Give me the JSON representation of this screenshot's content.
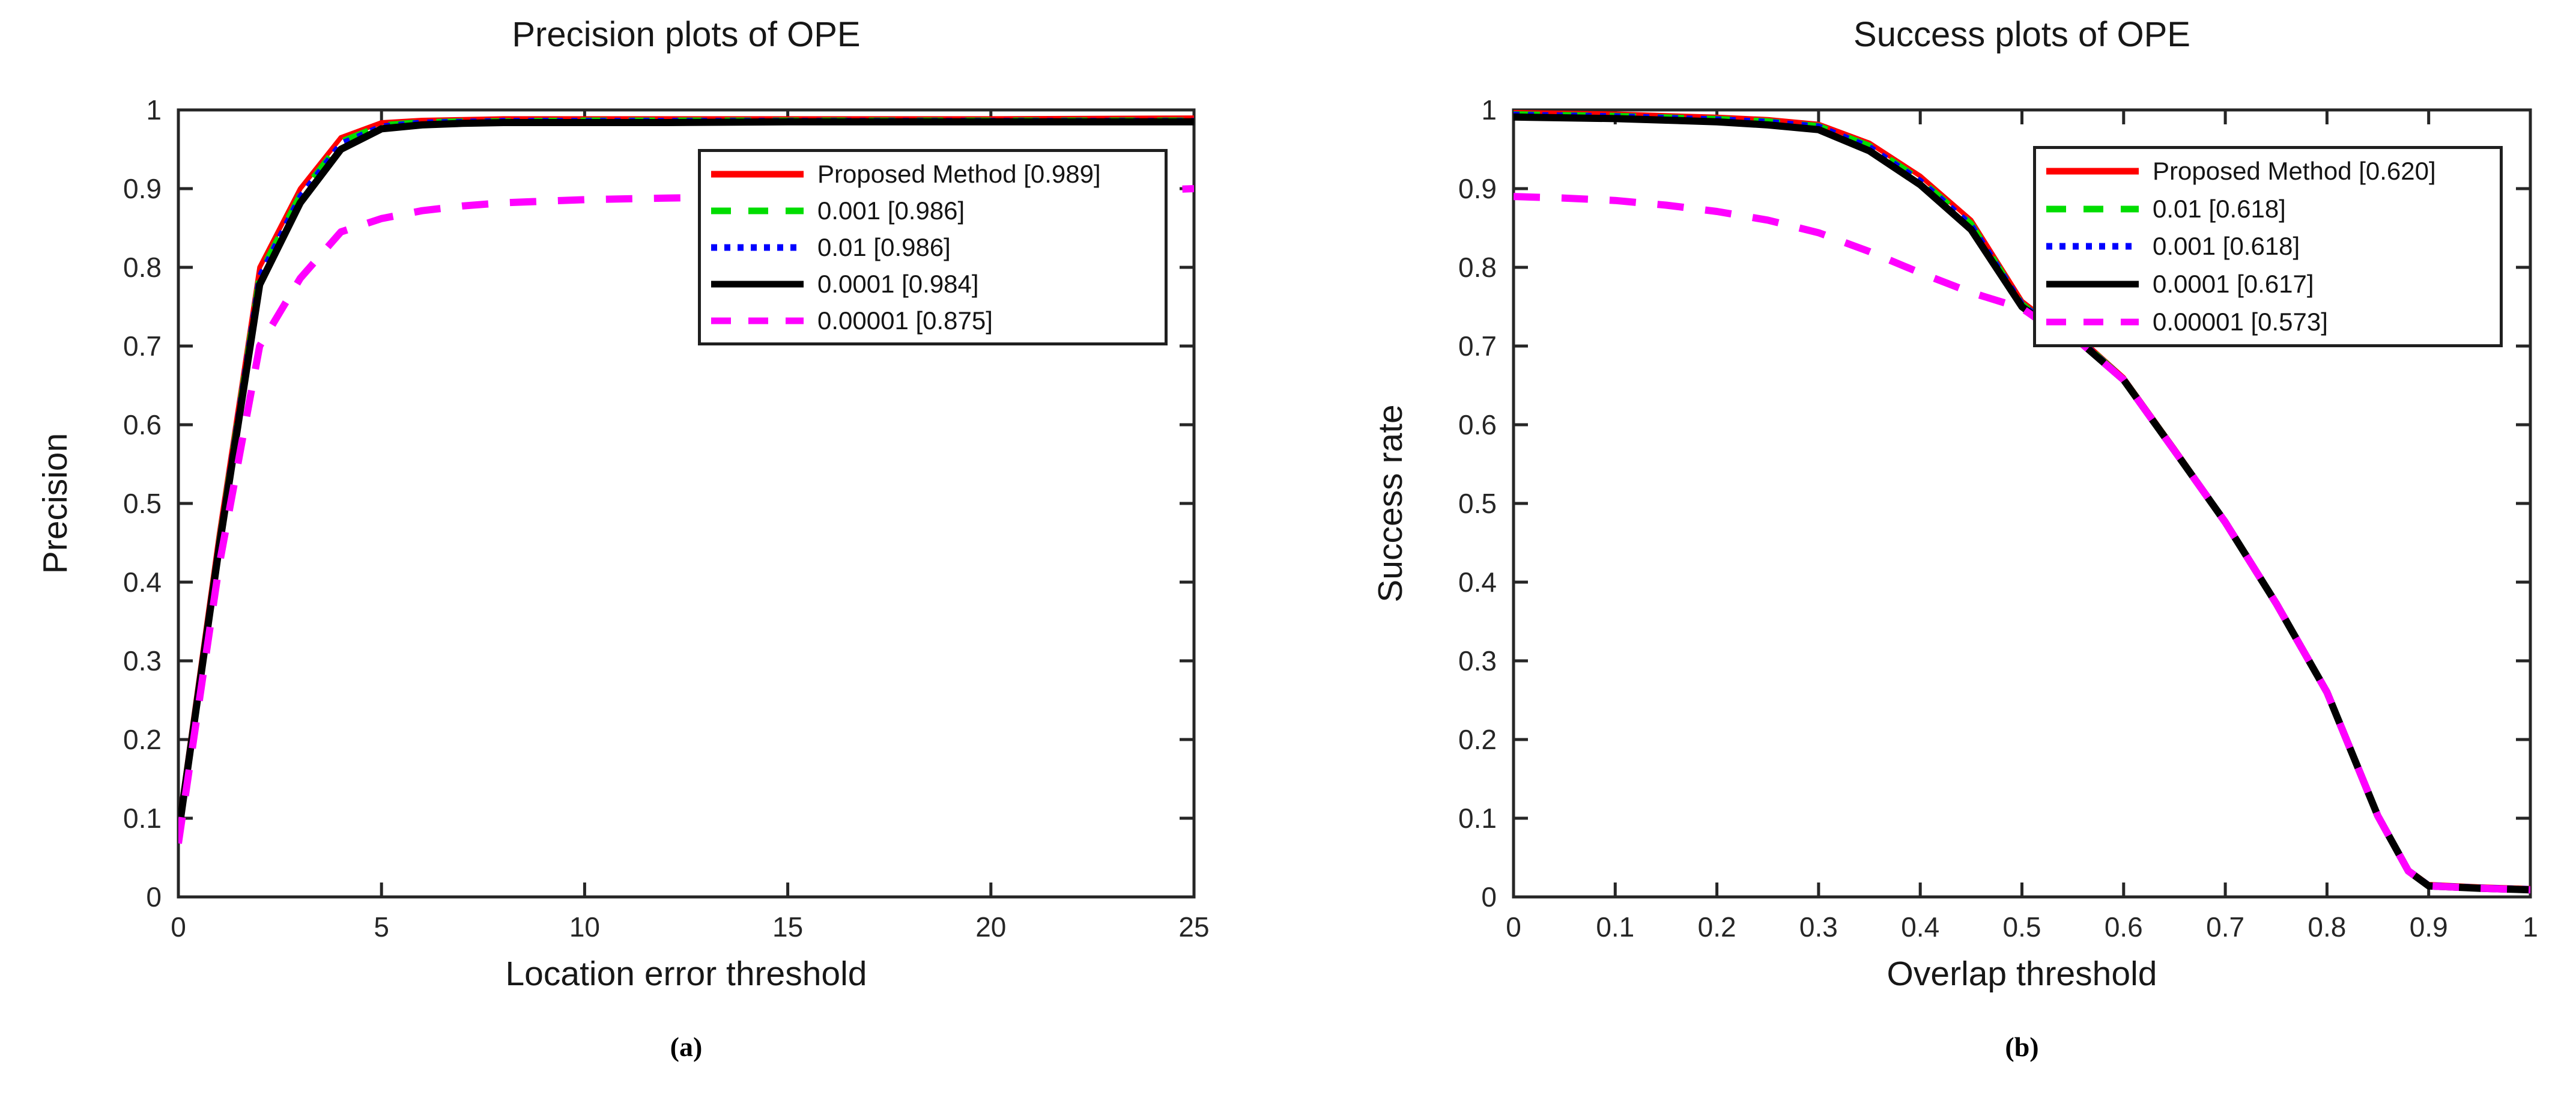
{
  "figure": {
    "background": "#ffffff",
    "axis_color": "#262626",
    "text_color": "#171717",
    "description": "Two MATLAB-style OPE tracking benchmark plots side by side"
  },
  "chart_data": [
    {
      "type": "line",
      "panel_label": "(a)",
      "title": "Precision plots of OPE",
      "xlabel": "Location error threshold",
      "ylabel": "Precision",
      "xlim": [
        0,
        25
      ],
      "ylim": [
        0,
        1
      ],
      "grid": false,
      "legend_position": "upper-right-inset",
      "xtick_values": [
        0,
        5,
        10,
        15,
        20,
        25
      ],
      "xtick_labels": [
        "0",
        "5",
        "10",
        "15",
        "20",
        "25"
      ],
      "ytick_values": [
        0,
        0.1,
        0.2,
        0.3,
        0.4,
        0.5,
        0.6,
        0.7,
        0.8,
        0.9,
        1
      ],
      "ytick_labels": [
        "0",
        "0.1",
        "0.2",
        "0.3",
        "0.4",
        "0.5",
        "0.6",
        "0.7",
        "0.8",
        "0.9",
        "1"
      ],
      "x": [
        0,
        1,
        2,
        3,
        4,
        5,
        6,
        7,
        8,
        10,
        12,
        15,
        20,
        25
      ],
      "series": [
        {
          "name": "Proposed Method",
          "score": "0.989",
          "label": "Proposed Method [0.989]",
          "color": "#ff0000",
          "line_style": "solid",
          "line_width": 8,
          "values": [
            0.09,
            0.46,
            0.8,
            0.9,
            0.965,
            0.984,
            0.987,
            0.988,
            0.989,
            0.989,
            0.989,
            0.989,
            0.989,
            0.99
          ]
        },
        {
          "name": "0.001",
          "score": "0.986",
          "label": "0.001 [0.986]",
          "color": "#00dd00",
          "line_style": "dashed",
          "line_width": 9,
          "values": [
            0.085,
            0.452,
            0.792,
            0.893,
            0.96,
            0.981,
            0.985,
            0.986,
            0.986,
            0.987,
            0.987,
            0.987,
            0.987,
            0.987
          ]
        },
        {
          "name": "0.01",
          "score": "0.986",
          "label": "0.01 [0.986]",
          "color": "#0000ff",
          "line_style": "dotted",
          "line_width": 10,
          "values": [
            0.083,
            0.448,
            0.788,
            0.89,
            0.957,
            0.979,
            0.984,
            0.985,
            0.986,
            0.986,
            0.986,
            0.986,
            0.986,
            0.986
          ]
        },
        {
          "name": "0.0001",
          "score": "0.984",
          "label": "0.0001 [0.984]",
          "color": "#000000",
          "line_style": "solid",
          "line_width": 12,
          "values": [
            0.08,
            0.443,
            0.778,
            0.882,
            0.95,
            0.976,
            0.981,
            0.983,
            0.984,
            0.984,
            0.984,
            0.985,
            0.985,
            0.985
          ]
        },
        {
          "name": "0.00001",
          "score": "0.875",
          "label": "0.00001 [0.875]",
          "color": "#ff00ff",
          "line_style": "dashed",
          "line_width": 12,
          "values": [
            0.068,
            0.42,
            0.7,
            0.786,
            0.845,
            0.862,
            0.872,
            0.878,
            0.882,
            0.886,
            0.888,
            0.89,
            0.89,
            0.9
          ]
        }
      ]
    },
    {
      "type": "line",
      "panel_label": "(b)",
      "title": "Success plots of OPE",
      "xlabel": "Overlap threshold",
      "ylabel": "Success rate",
      "xlim": [
        0,
        1
      ],
      "ylim": [
        0,
        1
      ],
      "grid": false,
      "legend_position": "upper-right-inset",
      "xtick_values": [
        0,
        0.1,
        0.2,
        0.3,
        0.4,
        0.5,
        0.6,
        0.7,
        0.8,
        0.9,
        1
      ],
      "xtick_labels": [
        "0",
        "0.1",
        "0.2",
        "0.3",
        "0.4",
        "0.5",
        "0.6",
        "0.7",
        "0.8",
        "0.9",
        "1"
      ],
      "ytick_values": [
        0,
        0.1,
        0.2,
        0.3,
        0.4,
        0.5,
        0.6,
        0.7,
        0.8,
        0.9,
        1
      ],
      "ytick_labels": [
        "0",
        "0.1",
        "0.2",
        "0.3",
        "0.4",
        "0.5",
        "0.6",
        "0.7",
        "0.8",
        "0.9",
        "1"
      ],
      "x": [
        0,
        0.05,
        0.1,
        0.15,
        0.2,
        0.25,
        0.3,
        0.35,
        0.4,
        0.45,
        0.5,
        0.52,
        0.55,
        0.6,
        0.65,
        0.7,
        0.75,
        0.8,
        0.85,
        0.88,
        0.9,
        0.95,
        1.0
      ],
      "series": [
        {
          "name": "Proposed Method",
          "score": "0.620",
          "label": "Proposed Method [0.620]",
          "color": "#ff0000",
          "line_style": "solid",
          "line_width": 8,
          "values": [
            0.997,
            0.996,
            0.995,
            0.993,
            0.991,
            0.988,
            0.982,
            0.958,
            0.916,
            0.86,
            0.757,
            0.737,
            0.718,
            0.66,
            0.57,
            0.478,
            0.375,
            0.262,
            0.105,
            0.035,
            0.016,
            0.013,
            0.011
          ]
        },
        {
          "name": "0.01",
          "score": "0.618",
          "label": "0.01 [0.618]",
          "color": "#00dd00",
          "line_style": "dashed",
          "line_width": 9,
          "values": [
            0.995,
            0.994,
            0.993,
            0.991,
            0.989,
            0.986,
            0.98,
            0.955,
            0.912,
            0.856,
            0.754,
            0.734,
            0.716,
            0.659,
            0.569,
            0.477,
            0.374,
            0.261,
            0.104,
            0.034,
            0.015,
            0.012,
            0.01
          ]
        },
        {
          "name": "0.001",
          "score": "0.618",
          "label": "0.001 [0.618]",
          "color": "#0000ff",
          "line_style": "dotted",
          "line_width": 10,
          "values": [
            0.994,
            0.993,
            0.992,
            0.99,
            0.988,
            0.985,
            0.979,
            0.953,
            0.91,
            0.854,
            0.753,
            0.733,
            0.715,
            0.658,
            0.568,
            0.477,
            0.374,
            0.261,
            0.104,
            0.034,
            0.015,
            0.012,
            0.01
          ]
        },
        {
          "name": "0.0001",
          "score": "0.617",
          "label": "0.0001 [0.617]",
          "color": "#000000",
          "line_style": "solid",
          "line_width": 12,
          "values": [
            0.991,
            0.99,
            0.989,
            0.987,
            0.985,
            0.981,
            0.975,
            0.948,
            0.905,
            0.848,
            0.75,
            0.731,
            0.713,
            0.657,
            0.567,
            0.476,
            0.373,
            0.26,
            0.103,
            0.033,
            0.014,
            0.011,
            0.009
          ]
        },
        {
          "name": "0.00001",
          "score": "0.573",
          "label": "0.00001 [0.573]",
          "color": "#ff00ff",
          "line_style": "dashed",
          "line_width": 12,
          "values": [
            0.89,
            0.888,
            0.885,
            0.879,
            0.871,
            0.86,
            0.844,
            0.82,
            0.793,
            0.768,
            0.748,
            0.73,
            0.713,
            0.657,
            0.567,
            0.476,
            0.373,
            0.26,
            0.103,
            0.033,
            0.014,
            0.011,
            0.009
          ]
        }
      ]
    }
  ]
}
